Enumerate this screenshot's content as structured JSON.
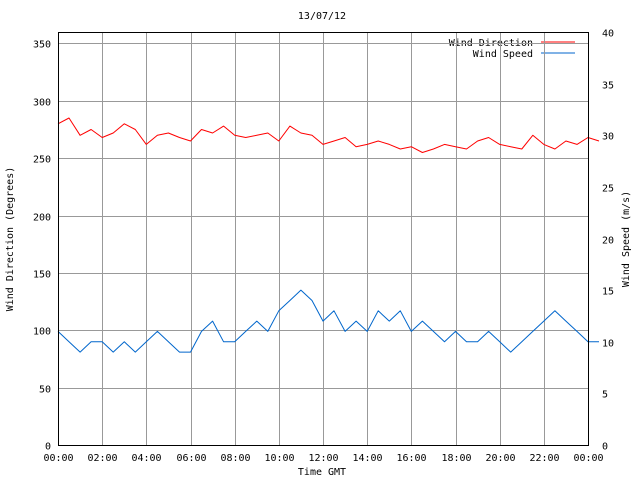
{
  "chart_data": {
    "type": "line",
    "title": "13/07/12",
    "xlabel": "Time GMT",
    "ylabel_left": "Wind Direction (Degrees)",
    "ylabel_right": "Wind Speed (m/s)",
    "x_ticks": [
      "00:00",
      "02:00",
      "04:00",
      "06:00",
      "08:00",
      "10:00",
      "12:00",
      "14:00",
      "16:00",
      "18:00",
      "20:00",
      "22:00",
      "00:00"
    ],
    "x_range_hours": [
      0,
      24
    ],
    "y_left_ticks": [
      "0",
      "50",
      "100",
      "150",
      "200",
      "250",
      "300",
      "350"
    ],
    "y_left_range": [
      0,
      360
    ],
    "y_right_ticks": [
      "0",
      "5",
      "10",
      "15",
      "20",
      "25",
      "30",
      "35",
      "40"
    ],
    "y_right_range": [
      0,
      40
    ],
    "grid": true,
    "legend_position": "top-right",
    "series": [
      {
        "name": "Wind Direction",
        "axis": "left",
        "color": "#ff0000",
        "sample_interval_minutes": 30,
        "values": [
          280,
          285,
          270,
          275,
          268,
          272,
          280,
          275,
          262,
          270,
          272,
          268,
          265,
          275,
          272,
          278,
          270,
          268,
          270,
          272,
          265,
          278,
          272,
          270,
          262,
          265,
          268,
          260,
          262,
          265,
          262,
          258,
          260,
          255,
          258,
          262,
          260,
          258,
          265,
          268,
          262,
          260,
          258,
          270,
          262,
          258,
          265,
          262,
          268,
          265
        ]
      },
      {
        "name": "Wind Speed",
        "axis": "right",
        "color": "#0066cc",
        "sample_interval_minutes": 30,
        "values": [
          11,
          10,
          9,
          10,
          10,
          9,
          10,
          9,
          10,
          11,
          10,
          9,
          9,
          11,
          12,
          10,
          10,
          11,
          12,
          11,
          13,
          14,
          15,
          14,
          12,
          13,
          11,
          12,
          11,
          13,
          12,
          13,
          11,
          12,
          11,
          10,
          11,
          10,
          10,
          11,
          10,
          9,
          10,
          11,
          12,
          13,
          12,
          11,
          10,
          10
        ]
      }
    ]
  }
}
